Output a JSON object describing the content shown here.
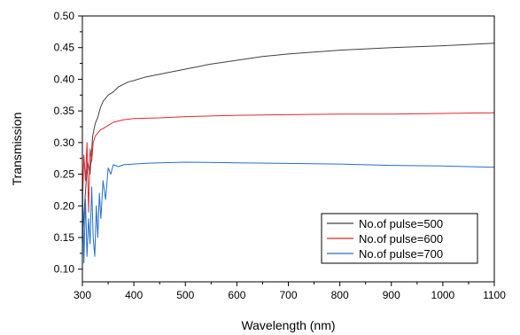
{
  "chart_data": {
    "type": "line",
    "title": "",
    "xlabel": "Wavelength (nm)",
    "ylabel": "Transmission",
    "xlim": [
      300,
      1100
    ],
    "ylim": [
      0.08,
      0.5
    ],
    "x_ticks": [
      300,
      400,
      500,
      600,
      700,
      800,
      900,
      1000,
      1100
    ],
    "y_ticks": [
      0.1,
      0.15,
      0.2,
      0.25,
      0.3,
      0.35,
      0.4,
      0.45,
      0.5
    ],
    "x_tick_labels": [
      "300",
      "400",
      "500",
      "600",
      "700",
      "800",
      "900",
      "1000",
      "1100"
    ],
    "y_tick_labels": [
      "0.10",
      "0.15",
      "0.20",
      "0.25",
      "0.30",
      "0.35",
      "0.40",
      "0.45",
      "0.50"
    ],
    "grid": false,
    "legend_position": "bottom-right",
    "series": [
      {
        "name": "No.of pulse=500",
        "color": "#404040",
        "x": [
          300,
          305,
          310,
          315,
          320,
          325,
          330,
          335,
          340,
          345,
          350,
          360,
          370,
          380,
          390,
          400,
          420,
          450,
          500,
          550,
          600,
          650,
          700,
          800,
          900,
          1000,
          1100
        ],
        "y": [
          0.14,
          0.21,
          0.27,
          0.25,
          0.31,
          0.33,
          0.34,
          0.355,
          0.365,
          0.37,
          0.375,
          0.38,
          0.388,
          0.392,
          0.396,
          0.398,
          0.403,
          0.408,
          0.416,
          0.424,
          0.43,
          0.436,
          0.44,
          0.446,
          0.45,
          0.453,
          0.457
        ]
      },
      {
        "name": "No.of pulse=600",
        "color": "#e8262b",
        "x": [
          300,
          303,
          306,
          309,
          312,
          315,
          318,
          321,
          325,
          330,
          335,
          340,
          350,
          360,
          380,
          400,
          450,
          500,
          600,
          700,
          800,
          900,
          1000,
          1100
        ],
        "y": [
          0.2,
          0.28,
          0.24,
          0.3,
          0.19,
          0.29,
          0.27,
          0.3,
          0.31,
          0.315,
          0.32,
          0.322,
          0.327,
          0.332,
          0.336,
          0.338,
          0.339,
          0.341,
          0.343,
          0.344,
          0.345,
          0.345,
          0.346,
          0.347
        ]
      },
      {
        "name": "No.of pulse=700",
        "color": "#1f6fd1",
        "x": [
          300,
          303,
          306,
          309,
          312,
          315,
          318,
          321,
          324,
          327,
          330,
          333,
          336,
          340,
          345,
          350,
          355,
          360,
          370,
          380,
          400,
          420,
          450,
          500,
          600,
          700,
          800,
          900,
          1000,
          1100
        ],
        "y": [
          0.24,
          0.11,
          0.21,
          0.12,
          0.18,
          0.14,
          0.23,
          0.15,
          0.12,
          0.2,
          0.15,
          0.22,
          0.18,
          0.24,
          0.21,
          0.26,
          0.25,
          0.265,
          0.262,
          0.265,
          0.266,
          0.267,
          0.268,
          0.269,
          0.268,
          0.267,
          0.266,
          0.264,
          0.263,
          0.261
        ]
      }
    ]
  }
}
